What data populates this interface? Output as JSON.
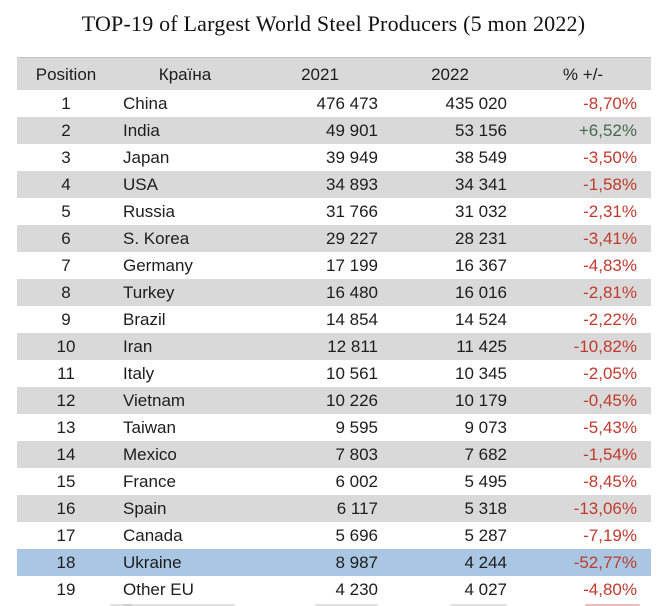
{
  "title": "TOP-19 of Largest World Steel Producers (5 mon 2022)",
  "table": {
    "columns": [
      "Position",
      "Країна",
      "2021",
      "2022",
      "% +/-"
    ],
    "rows": [
      {
        "pos": "1",
        "country": "China",
        "y2021": "476 473",
        "y2022": "435 020",
        "pct": "-8,70%"
      },
      {
        "pos": "2",
        "country": "India",
        "y2021": "49 901",
        "y2022": "53 156",
        "pct": "+6,52%"
      },
      {
        "pos": "3",
        "country": "Japan",
        "y2021": "39 949",
        "y2022": "38 549",
        "pct": "-3,50%"
      },
      {
        "pos": "4",
        "country": "USA",
        "y2021": "34 893",
        "y2022": "34 341",
        "pct": "-1,58%"
      },
      {
        "pos": "5",
        "country": "Russia",
        "y2021": "31 766",
        "y2022": "31 032",
        "pct": "-2,31%"
      },
      {
        "pos": "6",
        "country": "S. Korea",
        "y2021": "29 227",
        "y2022": "28 231",
        "pct": "-3,41%"
      },
      {
        "pos": "7",
        "country": "Germany",
        "y2021": "17 199",
        "y2022": "16 367",
        "pct": "-4,83%"
      },
      {
        "pos": "8",
        "country": "Turkey",
        "y2021": "16 480",
        "y2022": "16 016",
        "pct": "-2,81%"
      },
      {
        "pos": "9",
        "country": "Brazil",
        "y2021": "14 854",
        "y2022": "14 524",
        "pct": "-2,22%"
      },
      {
        "pos": "10",
        "country": "Iran",
        "y2021": "12 811",
        "y2022": "11 425",
        "pct": "-10,82%"
      },
      {
        "pos": "11",
        "country": "Italy",
        "y2021": "10 561",
        "y2022": "10 345",
        "pct": "-2,05%"
      },
      {
        "pos": "12",
        "country": "Vietnam",
        "y2021": "10 226",
        "y2022": "10 179",
        "pct": "-0,45%"
      },
      {
        "pos": "13",
        "country": "Taiwan",
        "y2021": "9 595",
        "y2022": "9 073",
        "pct": "-5,43%"
      },
      {
        "pos": "14",
        "country": "Mexico",
        "y2021": "7 803",
        "y2022": "7 682",
        "pct": "-1,54%"
      },
      {
        "pos": "15",
        "country": "France",
        "y2021": "6 002",
        "y2022": "5 495",
        "pct": "-8,45%"
      },
      {
        "pos": "16",
        "country": "Spain",
        "y2021": "6 117",
        "y2022": "5 318",
        "pct": "-13,06%"
      },
      {
        "pos": "17",
        "country": "Canada",
        "y2021": "5 696",
        "y2022": "5 287",
        "pct": "-7,19%"
      },
      {
        "pos": "18",
        "country": "Ukraine",
        "y2021": "8 987",
        "y2022": "4 244",
        "pct": "-52,77%",
        "highlight": true
      },
      {
        "pos": "19",
        "country": "Other EU",
        "y2021": "4 230",
        "y2022": "4 027",
        "pct": "-4,80%"
      }
    ]
  },
  "colors": {
    "header_bg": "#d9d9d9",
    "stripe_bg": "#d9d9d9",
    "highlight_bg": "#a9c7e2",
    "negative_pct": "#c03a2e",
    "positive_pct": "#47684e",
    "text": "#1d1d1d"
  },
  "chart_data": {
    "type": "table",
    "title": "TOP-19 of Largest World Steel Producers (5 mon 2022)",
    "columns": [
      "Position",
      "Країна",
      "2021",
      "2022",
      "% +/-"
    ],
    "rows": [
      [
        1,
        "China",
        476473,
        435020,
        -8.7
      ],
      [
        2,
        "India",
        49901,
        53156,
        6.52
      ],
      [
        3,
        "Japan",
        39949,
        38549,
        -3.5
      ],
      [
        4,
        "USA",
        34893,
        34341,
        -1.58
      ],
      [
        5,
        "Russia",
        31766,
        31032,
        -2.31
      ],
      [
        6,
        "S. Korea",
        29227,
        28231,
        -3.41
      ],
      [
        7,
        "Germany",
        17199,
        16367,
        -4.83
      ],
      [
        8,
        "Turkey",
        16480,
        16016,
        -2.81
      ],
      [
        9,
        "Brazil",
        14854,
        14524,
        -2.22
      ],
      [
        10,
        "Iran",
        12811,
        11425,
        -10.82
      ],
      [
        11,
        "Italy",
        10561,
        10345,
        -2.05
      ],
      [
        12,
        "Vietnam",
        10226,
        10179,
        -0.45
      ],
      [
        13,
        "Taiwan",
        9595,
        9073,
        -5.43
      ],
      [
        14,
        "Mexico",
        7803,
        7682,
        -1.54
      ],
      [
        15,
        "France",
        6002,
        5495,
        -8.45
      ],
      [
        16,
        "Spain",
        6117,
        5318,
        -13.06
      ],
      [
        17,
        "Canada",
        5696,
        5287,
        -7.19
      ],
      [
        18,
        "Ukraine",
        8987,
        4244,
        -52.77
      ],
      [
        19,
        "Other EU",
        4230,
        4027,
        -4.8
      ]
    ],
    "highlighted_row": "Ukraine",
    "legend_position": "none",
    "notes": "alternate rows shaded gray; Ukraine row highlighted blue; negative % in red, positive % in green"
  }
}
